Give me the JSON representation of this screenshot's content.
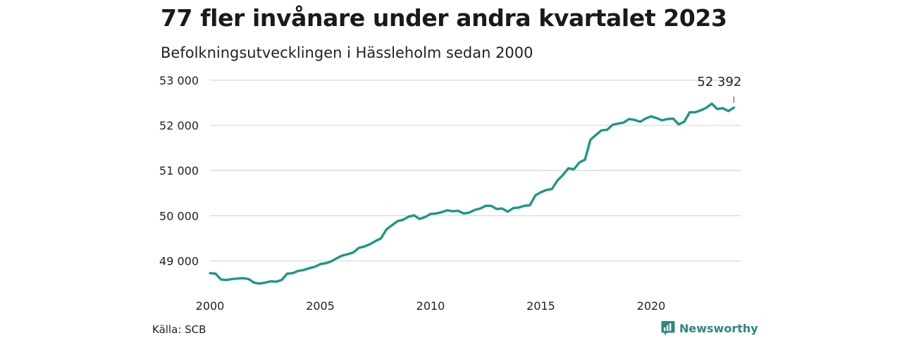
{
  "header": {
    "title": "77 fler invånare under andra kvartalet 2023",
    "subtitle": "Befolkningsutvecklingen i Hässleholm sedan 2000"
  },
  "footer": {
    "source": "Källa: SCB",
    "brand": "Newsworthy",
    "brand_icon": "bar-chart-icon"
  },
  "colors": {
    "line": "#1f9688",
    "grid": "#d9d9d9",
    "brand": "#2a8a7e"
  },
  "chart_data": {
    "type": "line",
    "title": "77 fler invånare under andra kvartalet 2023",
    "subtitle": "Befolkningsutvecklingen i Hässleholm sedan 2000",
    "xlabel": "",
    "ylabel": "",
    "xlim": [
      2000,
      2025.5
    ],
    "ylim": [
      48350,
      53000
    ],
    "y_ticks": [
      {
        "value": 49000,
        "label": "49 000"
      },
      {
        "value": 50000,
        "label": "50 000"
      },
      {
        "value": 51000,
        "label": "51 000"
      },
      {
        "value": 52000,
        "label": "52 000"
      },
      {
        "value": 53000,
        "label": "53 000"
      }
    ],
    "x_ticks": [
      {
        "value": 2000,
        "label": "2000"
      },
      {
        "value": 2005,
        "label": "2005"
      },
      {
        "value": 2010,
        "label": "2010"
      },
      {
        "value": 2015,
        "label": "2015"
      },
      {
        "value": 2020,
        "label": "2020"
      }
    ],
    "grid": true,
    "end_label": "52 392",
    "series": [
      {
        "values": [
          [
            2000.0,
            48730
          ],
          [
            2000.25,
            48720
          ],
          [
            2000.5,
            48590
          ],
          [
            2000.75,
            48580
          ],
          [
            2001.0,
            48600
          ],
          [
            2001.25,
            48610
          ],
          [
            2001.5,
            48620
          ],
          [
            2001.75,
            48600
          ],
          [
            2002.0,
            48520
          ],
          [
            2002.25,
            48500
          ],
          [
            2002.5,
            48520
          ],
          [
            2002.75,
            48550
          ],
          [
            2003.0,
            48540
          ],
          [
            2003.25,
            48580
          ],
          [
            2003.5,
            48720
          ],
          [
            2003.75,
            48730
          ],
          [
            2004.0,
            48780
          ],
          [
            2004.25,
            48800
          ],
          [
            2004.5,
            48840
          ],
          [
            2004.75,
            48870
          ],
          [
            2005.0,
            48930
          ],
          [
            2005.25,
            48950
          ],
          [
            2005.5,
            48990
          ],
          [
            2005.75,
            49060
          ],
          [
            2006.0,
            49120
          ],
          [
            2006.25,
            49150
          ],
          [
            2006.5,
            49190
          ],
          [
            2006.75,
            49290
          ],
          [
            2007.0,
            49320
          ],
          [
            2007.25,
            49370
          ],
          [
            2007.5,
            49440
          ],
          [
            2007.75,
            49500
          ],
          [
            2008.0,
            49700
          ],
          [
            2008.25,
            49790
          ],
          [
            2008.5,
            49880
          ],
          [
            2008.75,
            49910
          ],
          [
            2009.0,
            49980
          ],
          [
            2009.25,
            50010
          ],
          [
            2009.5,
            49930
          ],
          [
            2009.75,
            49970
          ],
          [
            2010.0,
            50040
          ],
          [
            2010.25,
            50050
          ],
          [
            2010.5,
            50080
          ],
          [
            2010.75,
            50120
          ],
          [
            2011.0,
            50100
          ],
          [
            2011.25,
            50110
          ],
          [
            2011.5,
            50050
          ],
          [
            2011.75,
            50070
          ],
          [
            2012.0,
            50130
          ],
          [
            2012.25,
            50160
          ],
          [
            2012.5,
            50220
          ],
          [
            2012.75,
            50220
          ],
          [
            2013.0,
            50150
          ],
          [
            2013.25,
            50160
          ],
          [
            2013.5,
            50090
          ],
          [
            2013.75,
            50170
          ],
          [
            2014.0,
            50180
          ],
          [
            2014.25,
            50220
          ],
          [
            2014.5,
            50230
          ],
          [
            2014.75,
            50450
          ],
          [
            2015.0,
            50520
          ],
          [
            2015.25,
            50570
          ],
          [
            2015.5,
            50590
          ],
          [
            2015.75,
            50780
          ],
          [
            2016.0,
            50900
          ],
          [
            2016.25,
            51050
          ],
          [
            2016.5,
            51030
          ],
          [
            2016.75,
            51180
          ],
          [
            2017.0,
            51240
          ],
          [
            2017.25,
            51680
          ],
          [
            2017.5,
            51790
          ],
          [
            2017.75,
            51890
          ],
          [
            2018.0,
            51900
          ],
          [
            2018.25,
            52010
          ],
          [
            2018.5,
            52040
          ],
          [
            2018.75,
            52060
          ],
          [
            2019.0,
            52140
          ],
          [
            2019.25,
            52120
          ],
          [
            2019.5,
            52080
          ],
          [
            2019.75,
            52150
          ],
          [
            2020.0,
            52200
          ],
          [
            2020.25,
            52160
          ],
          [
            2020.5,
            52110
          ],
          [
            2020.75,
            52140
          ],
          [
            2021.0,
            52150
          ],
          [
            2021.25,
            52020
          ],
          [
            2021.5,
            52080
          ],
          [
            2021.75,
            52290
          ],
          [
            2022.0,
            52290
          ],
          [
            2022.25,
            52330
          ],
          [
            2022.5,
            52390
          ],
          [
            2022.75,
            52480
          ],
          [
            2023.0,
            52360
          ],
          [
            2023.25,
            52380
          ],
          [
            2023.5,
            52315
          ],
          [
            2023.75,
            52392
          ]
        ]
      }
    ]
  }
}
